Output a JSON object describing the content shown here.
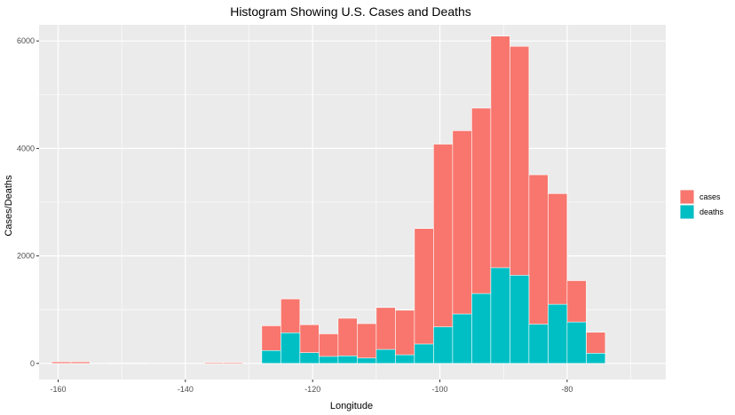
{
  "chart_data": {
    "type": "bar",
    "stacked": "overlay",
    "title": "Histogram Showing U.S. Cases and Deaths",
    "xlabel": "Longitude",
    "ylabel": "Cases/Deaths",
    "xlim": [
      -163,
      -64.5
    ],
    "ylim": [
      -300,
      6300
    ],
    "x_ticks": [
      -160,
      -140,
      -120,
      -100,
      -80
    ],
    "y_ticks": [
      0,
      2000,
      4000,
      6000
    ],
    "grid": true,
    "legend_position": "right",
    "bin_width": 3.0,
    "bin_centers": [
      -159.5,
      -156.5,
      -153.5,
      -150.5,
      -147.5,
      -144.5,
      -141.5,
      -138.5,
      -135.5,
      -132.5,
      -129.5,
      -126.5,
      -123.5,
      -120.5,
      -117.5,
      -114.5,
      -111.5,
      -108.5,
      -105.5,
      -102.5,
      -99.5,
      -96.5,
      -93.5,
      -90.5,
      -87.5,
      -84.5,
      -81.5,
      -78.5,
      -75.5,
      -72.5,
      -69.5,
      -66.5
    ],
    "series": [
      {
        "name": "cases",
        "color": "#F8766D",
        "values": [
          30,
          30,
          0,
          10,
          10,
          0,
          0,
          0,
          20,
          20,
          0,
          700,
          1200,
          720,
          550,
          840,
          740,
          1040,
          990,
          2510,
          4080,
          4330,
          4750,
          6090,
          5900,
          3510,
          3160,
          1540,
          580,
          0,
          0,
          0
        ]
      },
      {
        "name": "deaths",
        "color": "#00BFC4",
        "values": [
          0,
          0,
          0,
          0,
          0,
          0,
          0,
          0,
          0,
          0,
          0,
          240,
          570,
          200,
          130,
          140,
          100,
          260,
          160,
          360,
          680,
          920,
          1300,
          1780,
          1640,
          730,
          1100,
          770,
          190,
          0,
          0,
          0
        ]
      }
    ]
  }
}
